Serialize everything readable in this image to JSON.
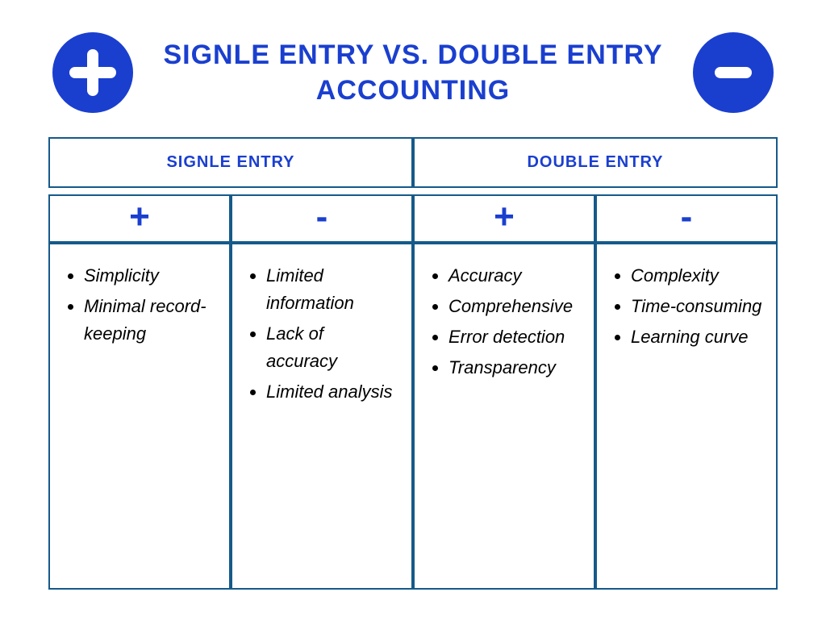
{
  "colors": {
    "primary_blue": "#1a3fcf",
    "border_blue": "#155a8a",
    "title_text": "#1a3fcf",
    "header_text": "#1a3fcf",
    "sign_text": "#1a3fcf",
    "icon_bg": "#1a3fcf",
    "icon_fg": "#ffffff",
    "body_text": "#000000",
    "background": "#ffffff"
  },
  "title": "SIGNLE ENTRY VS. DOUBLE ENTRY ACCOUNTING",
  "icons": {
    "left": "plus",
    "right": "minus"
  },
  "columns": {
    "left": {
      "header": "SIGNLE ENTRY",
      "pros_sign": "+",
      "cons_sign": "-",
      "pros": [
        "Simplicity",
        "Minimal record-keeping"
      ],
      "cons": [
        "Limited information",
        "Lack of accuracy",
        "Limited analysis"
      ]
    },
    "right": {
      "header": "DOUBLE ENTRY",
      "pros_sign": "+",
      "cons_sign": "-",
      "pros": [
        "Accuracy",
        "Comprehen­sive",
        "Error detec­tion",
        "Transparency"
      ],
      "cons": [
        "Complexity",
        "Time-consuming",
        "Learning curve"
      ]
    }
  },
  "layout": {
    "col_width_pct": 25,
    "table_border_width": 2
  }
}
